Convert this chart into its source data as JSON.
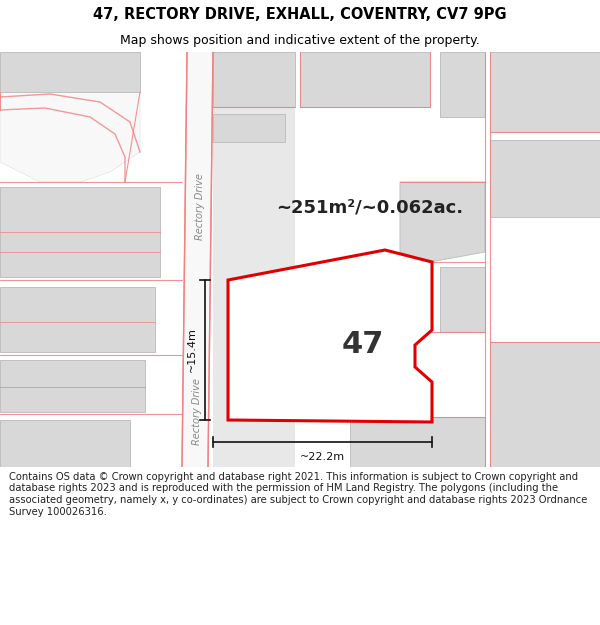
{
  "title_line1": "47, RECTORY DRIVE, EXHALL, COVENTRY, CV7 9PG",
  "title_line2": "Map shows position and indicative extent of the property.",
  "title_fontsize": 10.5,
  "subtitle_fontsize": 9.0,
  "map_bg": "#eeeeee",
  "building_color": "#d8d8d8",
  "building_edge_color": "#c0c0c0",
  "road_color": "#f8f8f8",
  "highlight_red": "#e00000",
  "property_fill": "#f0f0f0",
  "property_label": "47",
  "area_text": "~251m²/~0.062ac.",
  "dim_width": "~22.2m",
  "dim_height": "~15.4m",
  "road_label_color": "#888888",
  "dim_line_color": "#111111",
  "footer_text": "Contains OS data © Crown copyright and database right 2021. This information is subject to Crown copyright and database rights 2023 and is reproduced with the permission of HM Land Registry. The polygons (including the associated geometry, namely x, y co-ordinates) are subject to Crown copyright and database rights 2023 Ordnance Survey 100026316.",
  "footer_fontsize": 7.2,
  "pink": "#f08080",
  "pink_lw": 1.0
}
